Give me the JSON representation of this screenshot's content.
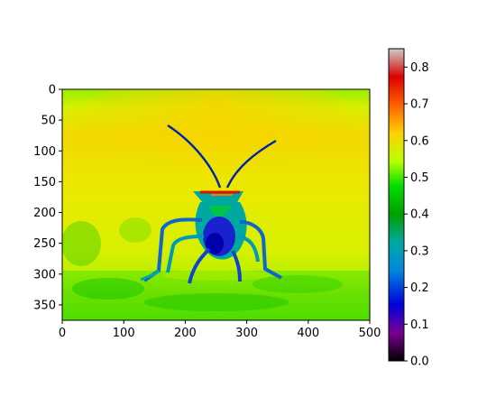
{
  "chart_data": {
    "type": "heatmap",
    "title": "",
    "xlabel": "",
    "ylabel": "",
    "xlim": [
      0,
      500
    ],
    "ylim": [
      375,
      0
    ],
    "x_ticks": [
      0,
      100,
      200,
      300,
      400,
      500
    ],
    "x_tick_labels": [
      "0",
      "100",
      "200",
      "300",
      "400",
      "500"
    ],
    "y_ticks": [
      0,
      50,
      100,
      150,
      200,
      250,
      300,
      350
    ],
    "y_tick_labels": [
      "0",
      "50",
      "100",
      "150",
      "200",
      "250",
      "300",
      "350"
    ],
    "image_shape": [
      375,
      500
    ],
    "colormap": "nipy_spectral",
    "colorbar": {
      "range": [
        0.0,
        0.85
      ],
      "ticks": [
        0.0,
        0.1,
        0.2,
        0.3,
        0.4,
        0.5,
        0.6,
        0.7,
        0.8
      ],
      "tick_labels": [
        "0.0",
        "0.1",
        "0.2",
        "0.3",
        "0.4",
        "0.5",
        "0.6",
        "0.7",
        "0.8"
      ],
      "colors": [
        "#000000",
        "#7a0091",
        "#0000dd",
        "#0088dd",
        "#00a8a0",
        "#00a000",
        "#00dd00",
        "#bbff00",
        "#ffd000",
        "#ff6000",
        "#dd0000",
        "#cccccc"
      ]
    },
    "subject": "an insect with long antennae, values near 0.1–0.3 on a background near 0.5–0.6"
  }
}
